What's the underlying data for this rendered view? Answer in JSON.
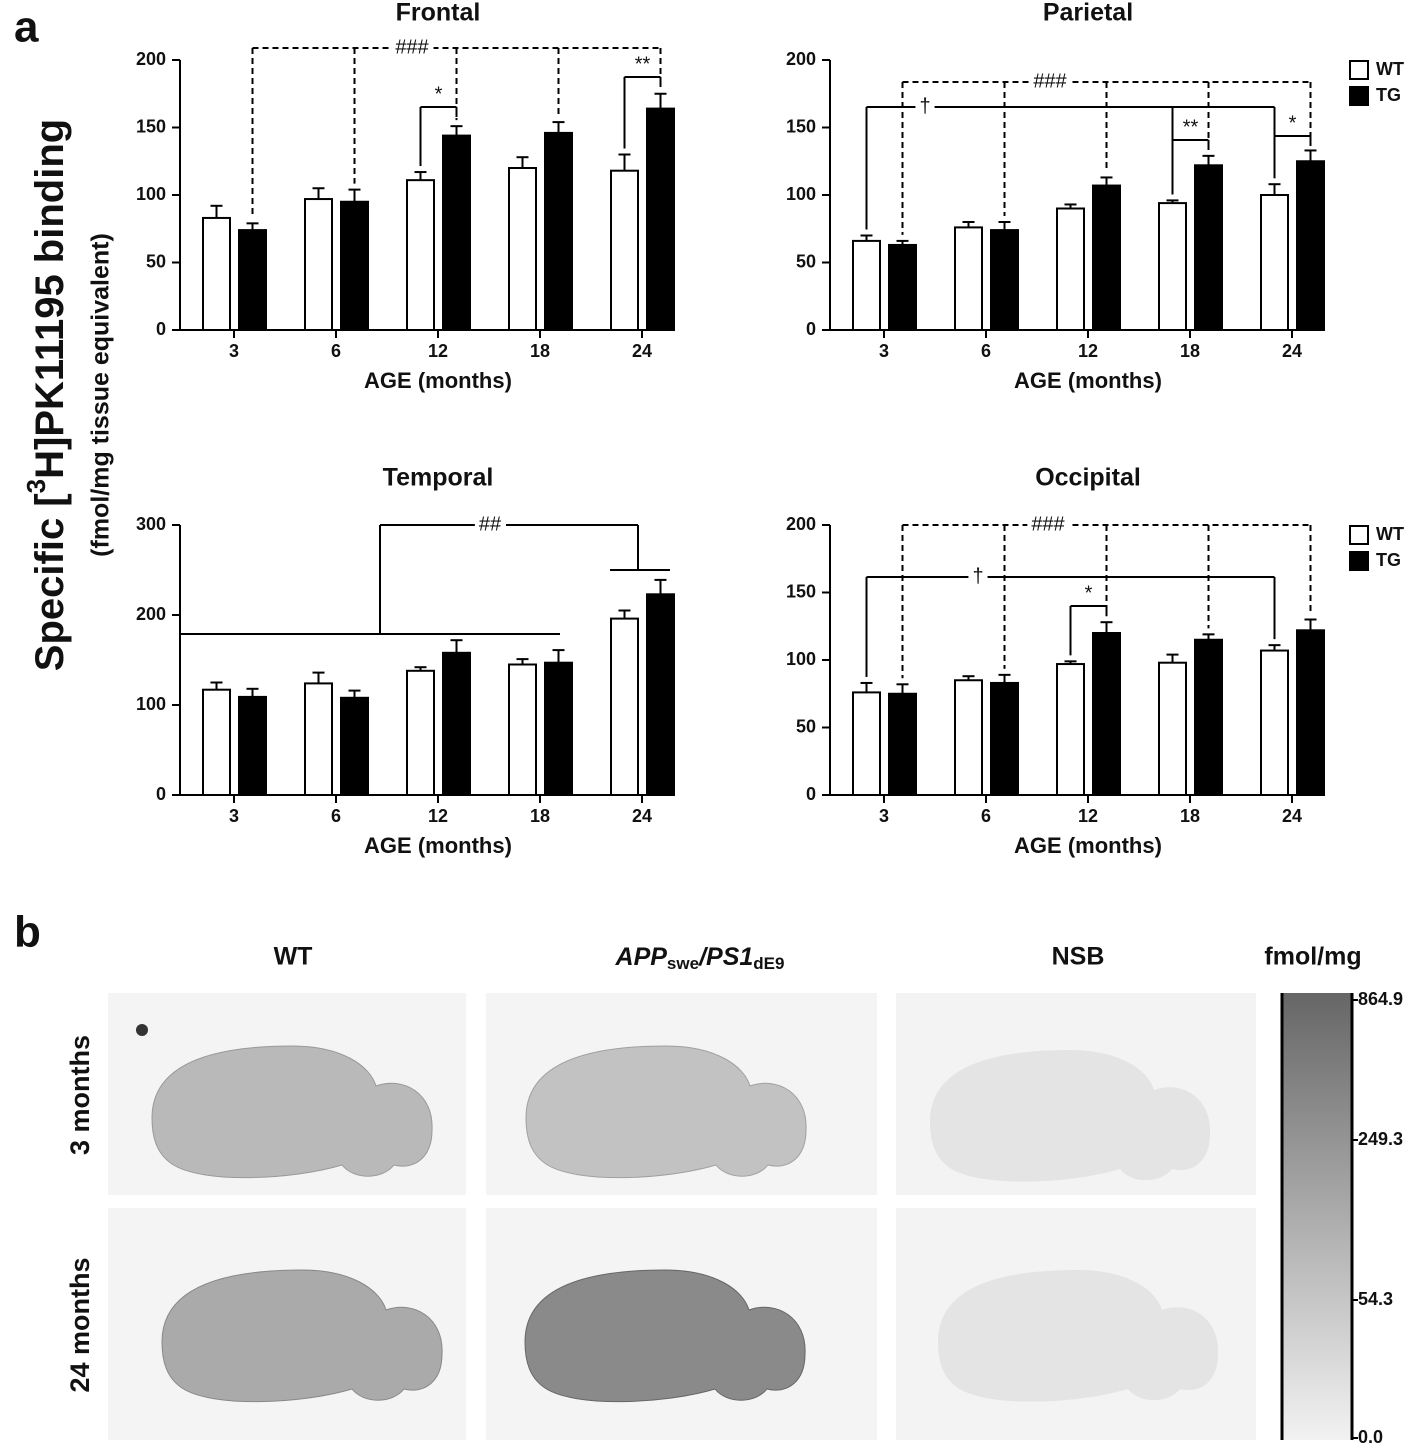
{
  "panel_a": {
    "label": "a",
    "y_label": [
      "Specific [",
      "3",
      "H]PK11195 binding"
    ],
    "y_sublabel": "(fmol/mg tissue equivalent)"
  },
  "chart_data": [
    {
      "type": "bar",
      "title": "Frontal",
      "x_label": "AGE (months)",
      "categories": [
        "3",
        "6",
        "12",
        "18",
        "24"
      ],
      "series": [
        {
          "name": "WT",
          "color": "#ffffff",
          "values": [
            83,
            97,
            111,
            120,
            118
          ],
          "errors": [
            9,
            8,
            6,
            8,
            12
          ]
        },
        {
          "name": "TG",
          "color": "#000000",
          "values": [
            74,
            95,
            144,
            146,
            164
          ],
          "errors": [
            5,
            9,
            7,
            8,
            11
          ]
        }
      ],
      "ylim": [
        0,
        200
      ],
      "yticks": [
        0,
        50,
        100,
        150,
        200
      ],
      "annotations": [
        "###",
        "*",
        "**"
      ]
    },
    {
      "type": "bar",
      "title": "Parietal",
      "x_label": "AGE (months)",
      "categories": [
        "3",
        "6",
        "12",
        "18",
        "24"
      ],
      "series": [
        {
          "name": "WT",
          "color": "#ffffff",
          "values": [
            66,
            76,
            90,
            94,
            100
          ],
          "errors": [
            4,
            4,
            3,
            2,
            8
          ]
        },
        {
          "name": "TG",
          "color": "#000000",
          "values": [
            63,
            74,
            107,
            122,
            125
          ],
          "errors": [
            3,
            6,
            6,
            7,
            8
          ]
        }
      ],
      "ylim": [
        0,
        200
      ],
      "yticks": [
        0,
        50,
        100,
        150,
        200
      ],
      "legend": "upper right",
      "annotations": [
        "###",
        "†",
        "**",
        "*"
      ]
    },
    {
      "type": "bar",
      "title": "Temporal",
      "x_label": "AGE (months)",
      "categories": [
        "3",
        "6",
        "12",
        "18",
        "24"
      ],
      "series": [
        {
          "name": "WT",
          "color": "#ffffff",
          "values": [
            117,
            124,
            138,
            145,
            196
          ],
          "errors": [
            8,
            12,
            4,
            6,
            9
          ]
        },
        {
          "name": "TG",
          "color": "#000000",
          "values": [
            109,
            108,
            158,
            147,
            223
          ],
          "errors": [
            9,
            8,
            14,
            14,
            16
          ]
        }
      ],
      "ylim": [
        0,
        300
      ],
      "yticks": [
        0,
        100,
        200,
        300
      ],
      "annotations": [
        "##"
      ]
    },
    {
      "type": "bar",
      "title": "Occipital",
      "x_label": "AGE (months)",
      "categories": [
        "3",
        "6",
        "12",
        "18",
        "24"
      ],
      "series": [
        {
          "name": "WT",
          "color": "#ffffff",
          "values": [
            76,
            85,
            97,
            98,
            107
          ],
          "errors": [
            7,
            3,
            2,
            6,
            4
          ]
        },
        {
          "name": "TG",
          "color": "#000000",
          "values": [
            75,
            83,
            120,
            115,
            122
          ],
          "errors": [
            7,
            6,
            8,
            4,
            8
          ]
        }
      ],
      "ylim": [
        0,
        200
      ],
      "yticks": [
        0,
        50,
        100,
        150,
        200
      ],
      "legend": "upper right",
      "annotations": [
        "###",
        "†",
        "*"
      ]
    }
  ],
  "panel_b": {
    "label": "b",
    "columns": [
      "WT",
      [
        "APP",
        "swe",
        "/",
        "PS1",
        "dE9"
      ],
      "NSB"
    ],
    "rows": [
      "3 months",
      "24 months"
    ],
    "colorbar": {
      "title": "fmol/mg",
      "ticks": [
        864.9,
        249.3,
        54.3,
        {
          "value": 0,
          "label": "0.0"
        }
      ]
    }
  }
}
